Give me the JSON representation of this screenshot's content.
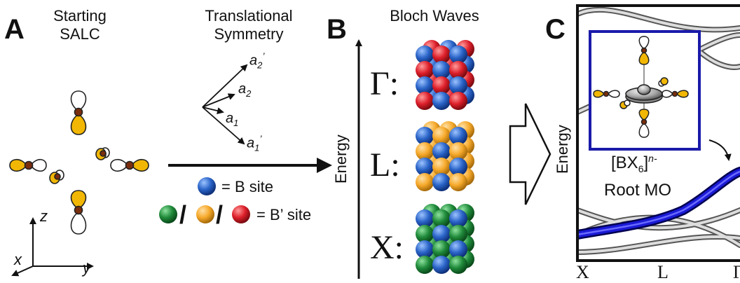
{
  "panels": {
    "a": "A",
    "b": "B",
    "c": "C"
  },
  "panel_a": {
    "title_line1": "Starting",
    "title_line2": "SALC",
    "axis_z": "z",
    "axis_x": "x",
    "axis_y": "y"
  },
  "translational": {
    "title_line1": "Translational",
    "title_line2": "Symmetry",
    "vectors": [
      {
        "base": "a",
        "sub": "2",
        "sup": "’"
      },
      {
        "base": "a",
        "sub": "2",
        "sup": ""
      },
      {
        "base": "a",
        "sub": "1",
        "sup": ""
      },
      {
        "base": "a",
        "sub": "1",
        "sup": "’"
      }
    ],
    "legend_b": "= B site",
    "legend_bprime": "= B’ site",
    "slash": "/"
  },
  "panel_b": {
    "title": "Bloch Waves",
    "energy_label": "Energy",
    "rows": [
      {
        "label": "Γ:",
        "accent": "#d9202a"
      },
      {
        "label": "L:",
        "accent": "#f5a623"
      },
      {
        "label": "X:",
        "accent": "#1f8a3a"
      }
    ],
    "blue": "#1f5fbf"
  },
  "panel_c": {
    "energy_label": "Energy",
    "formula_base": "[BX",
    "formula_sub": "6",
    "formula_close": "]",
    "formula_sup": "n-",
    "root_label": "Root MO",
    "kpoints": [
      "X",
      "L",
      "Γ"
    ],
    "band_color": "#1a1ad6",
    "frame_color": "#1a1aaa"
  },
  "colors": {
    "orbital_yellow": "#f2b705",
    "atom_brown": "#7a2e0e"
  }
}
